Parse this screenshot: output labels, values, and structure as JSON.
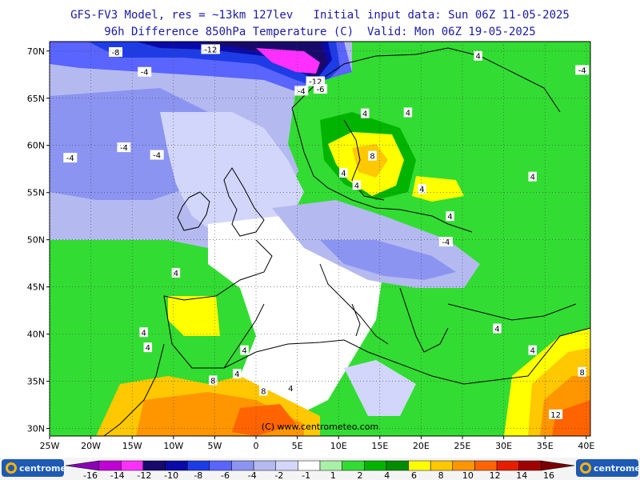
{
  "header": {
    "line1": "GFS-FV3 Model, res = ~13km 127lev   Initial input data: Sun 06Z 11-05-2025",
    "line2": "96h Difference 850hPa Temperature (C)  Valid: Mon 06Z 19-05-2025"
  },
  "map": {
    "lat_ticks": [
      {
        "lat": 70,
        "label": "70N"
      },
      {
        "lat": 65,
        "label": "65N"
      },
      {
        "lat": 60,
        "label": "60N"
      },
      {
        "lat": 55,
        "label": "55N"
      },
      {
        "lat": 50,
        "label": "50N"
      },
      {
        "lat": 45,
        "label": "45N"
      },
      {
        "lat": 40,
        "label": "40N"
      },
      {
        "lat": 35,
        "label": "35N"
      },
      {
        "lat": 30,
        "label": "30N"
      }
    ],
    "lon_ticks": [
      {
        "lon": -25,
        "label": "25W"
      },
      {
        "lon": -20,
        "label": "20W"
      },
      {
        "lon": -15,
        "label": "15W"
      },
      {
        "lon": -10,
        "label": "10W"
      },
      {
        "lon": -5,
        "label": "5W"
      },
      {
        "lon": 0,
        "label": "0"
      },
      {
        "lon": 5,
        "label": "5E"
      },
      {
        "lon": 10,
        "label": "10E"
      },
      {
        "lon": 15,
        "label": "15E"
      },
      {
        "lon": 20,
        "label": "20E"
      },
      {
        "lon": 25,
        "label": "25E"
      },
      {
        "lon": 30,
        "label": "30E"
      },
      {
        "lon": 35,
        "label": "35E"
      },
      {
        "lon": 40,
        "label": "40E"
      }
    ],
    "credit": "(C) www.centrometeo.com",
    "contour_labels": [
      {
        "text": "-8",
        "lon": -17,
        "lat": 69.9
      },
      {
        "text": "-12",
        "lon": -5.5,
        "lat": 70.2
      },
      {
        "text": "-4",
        "lon": -13.5,
        "lat": 67.8
      },
      {
        "text": "-12",
        "lon": 7.2,
        "lat": 66.8
      },
      {
        "text": "-4",
        "lon": 5.5,
        "lat": 65.8
      },
      {
        "text": "-6",
        "lon": 7.8,
        "lat": 66.0
      },
      {
        "text": "-4",
        "lon": -22.5,
        "lat": 58.7
      },
      {
        "text": "-4",
        "lon": -16,
        "lat": 59.8
      },
      {
        "text": "-4",
        "lon": -12,
        "lat": 59.0
      },
      {
        "text": "4",
        "lon": 26.9,
        "lat": 69.5
      },
      {
        "text": "-4",
        "lon": 39.5,
        "lat": 68.0
      },
      {
        "text": "4",
        "lon": 13.2,
        "lat": 63.4
      },
      {
        "text": "4",
        "lon": 18.4,
        "lat": 63.5
      },
      {
        "text": "8",
        "lon": 14.1,
        "lat": 58.9
      },
      {
        "text": "4",
        "lon": 10.6,
        "lat": 57.1
      },
      {
        "text": "4",
        "lon": 12.2,
        "lat": 55.8
      },
      {
        "text": "4",
        "lon": 20.1,
        "lat": 55.4
      },
      {
        "text": "4",
        "lon": 33.5,
        "lat": 56.7
      },
      {
        "text": "4",
        "lon": 23.5,
        "lat": 52.5
      },
      {
        "text": "-4",
        "lon": 23.0,
        "lat": 49.8
      },
      {
        "text": "4",
        "lon": -9.7,
        "lat": 46.5
      },
      {
        "text": "4",
        "lon": -13.6,
        "lat": 40.2
      },
      {
        "text": "4",
        "lon": -13.1,
        "lat": 38.6
      },
      {
        "text": "4",
        "lon": -1.4,
        "lat": 38.3
      },
      {
        "text": "4",
        "lon": -2.3,
        "lat": 35.8
      },
      {
        "text": "8",
        "lon": -5.2,
        "lat": 35.1
      },
      {
        "text": "8",
        "lon": 0.9,
        "lat": 34.0
      },
      {
        "text": "4",
        "lon": 4.2,
        "lat": 34.3
      },
      {
        "text": "4",
        "lon": 29.2,
        "lat": 40.6
      },
      {
        "text": "4",
        "lon": 33.5,
        "lat": 38.3
      },
      {
        "text": "8",
        "lon": 39.5,
        "lat": 36.0
      },
      {
        "text": "12",
        "lon": 36.3,
        "lat": 31.5
      }
    ]
  },
  "colorbar": {
    "labels": [
      "-16",
      "-14",
      "-12",
      "-10",
      "-8",
      "-6",
      "-4",
      "-2",
      "-1",
      "1",
      "2",
      "4",
      "6",
      "8",
      "10",
      "12",
      "14",
      "16"
    ],
    "colors": [
      "#8a00b4",
      "#c000d6",
      "#ff30ff",
      "#180a6a",
      "#0a0aa8",
      "#1e3ce6",
      "#5a64ff",
      "#8c94f2",
      "#b4baf0",
      "#d2d6fa",
      "#ffffff",
      "#a8f0a8",
      "#32dc32",
      "#00b400",
      "#008c00",
      "#ffff00",
      "#ffc800",
      "#ff9600",
      "#ff6400",
      "#e61e00",
      "#a00000",
      "#7a0000"
    ]
  },
  "logo": {
    "left_text": "centrometeo",
    "right_text": "centrometeo"
  }
}
